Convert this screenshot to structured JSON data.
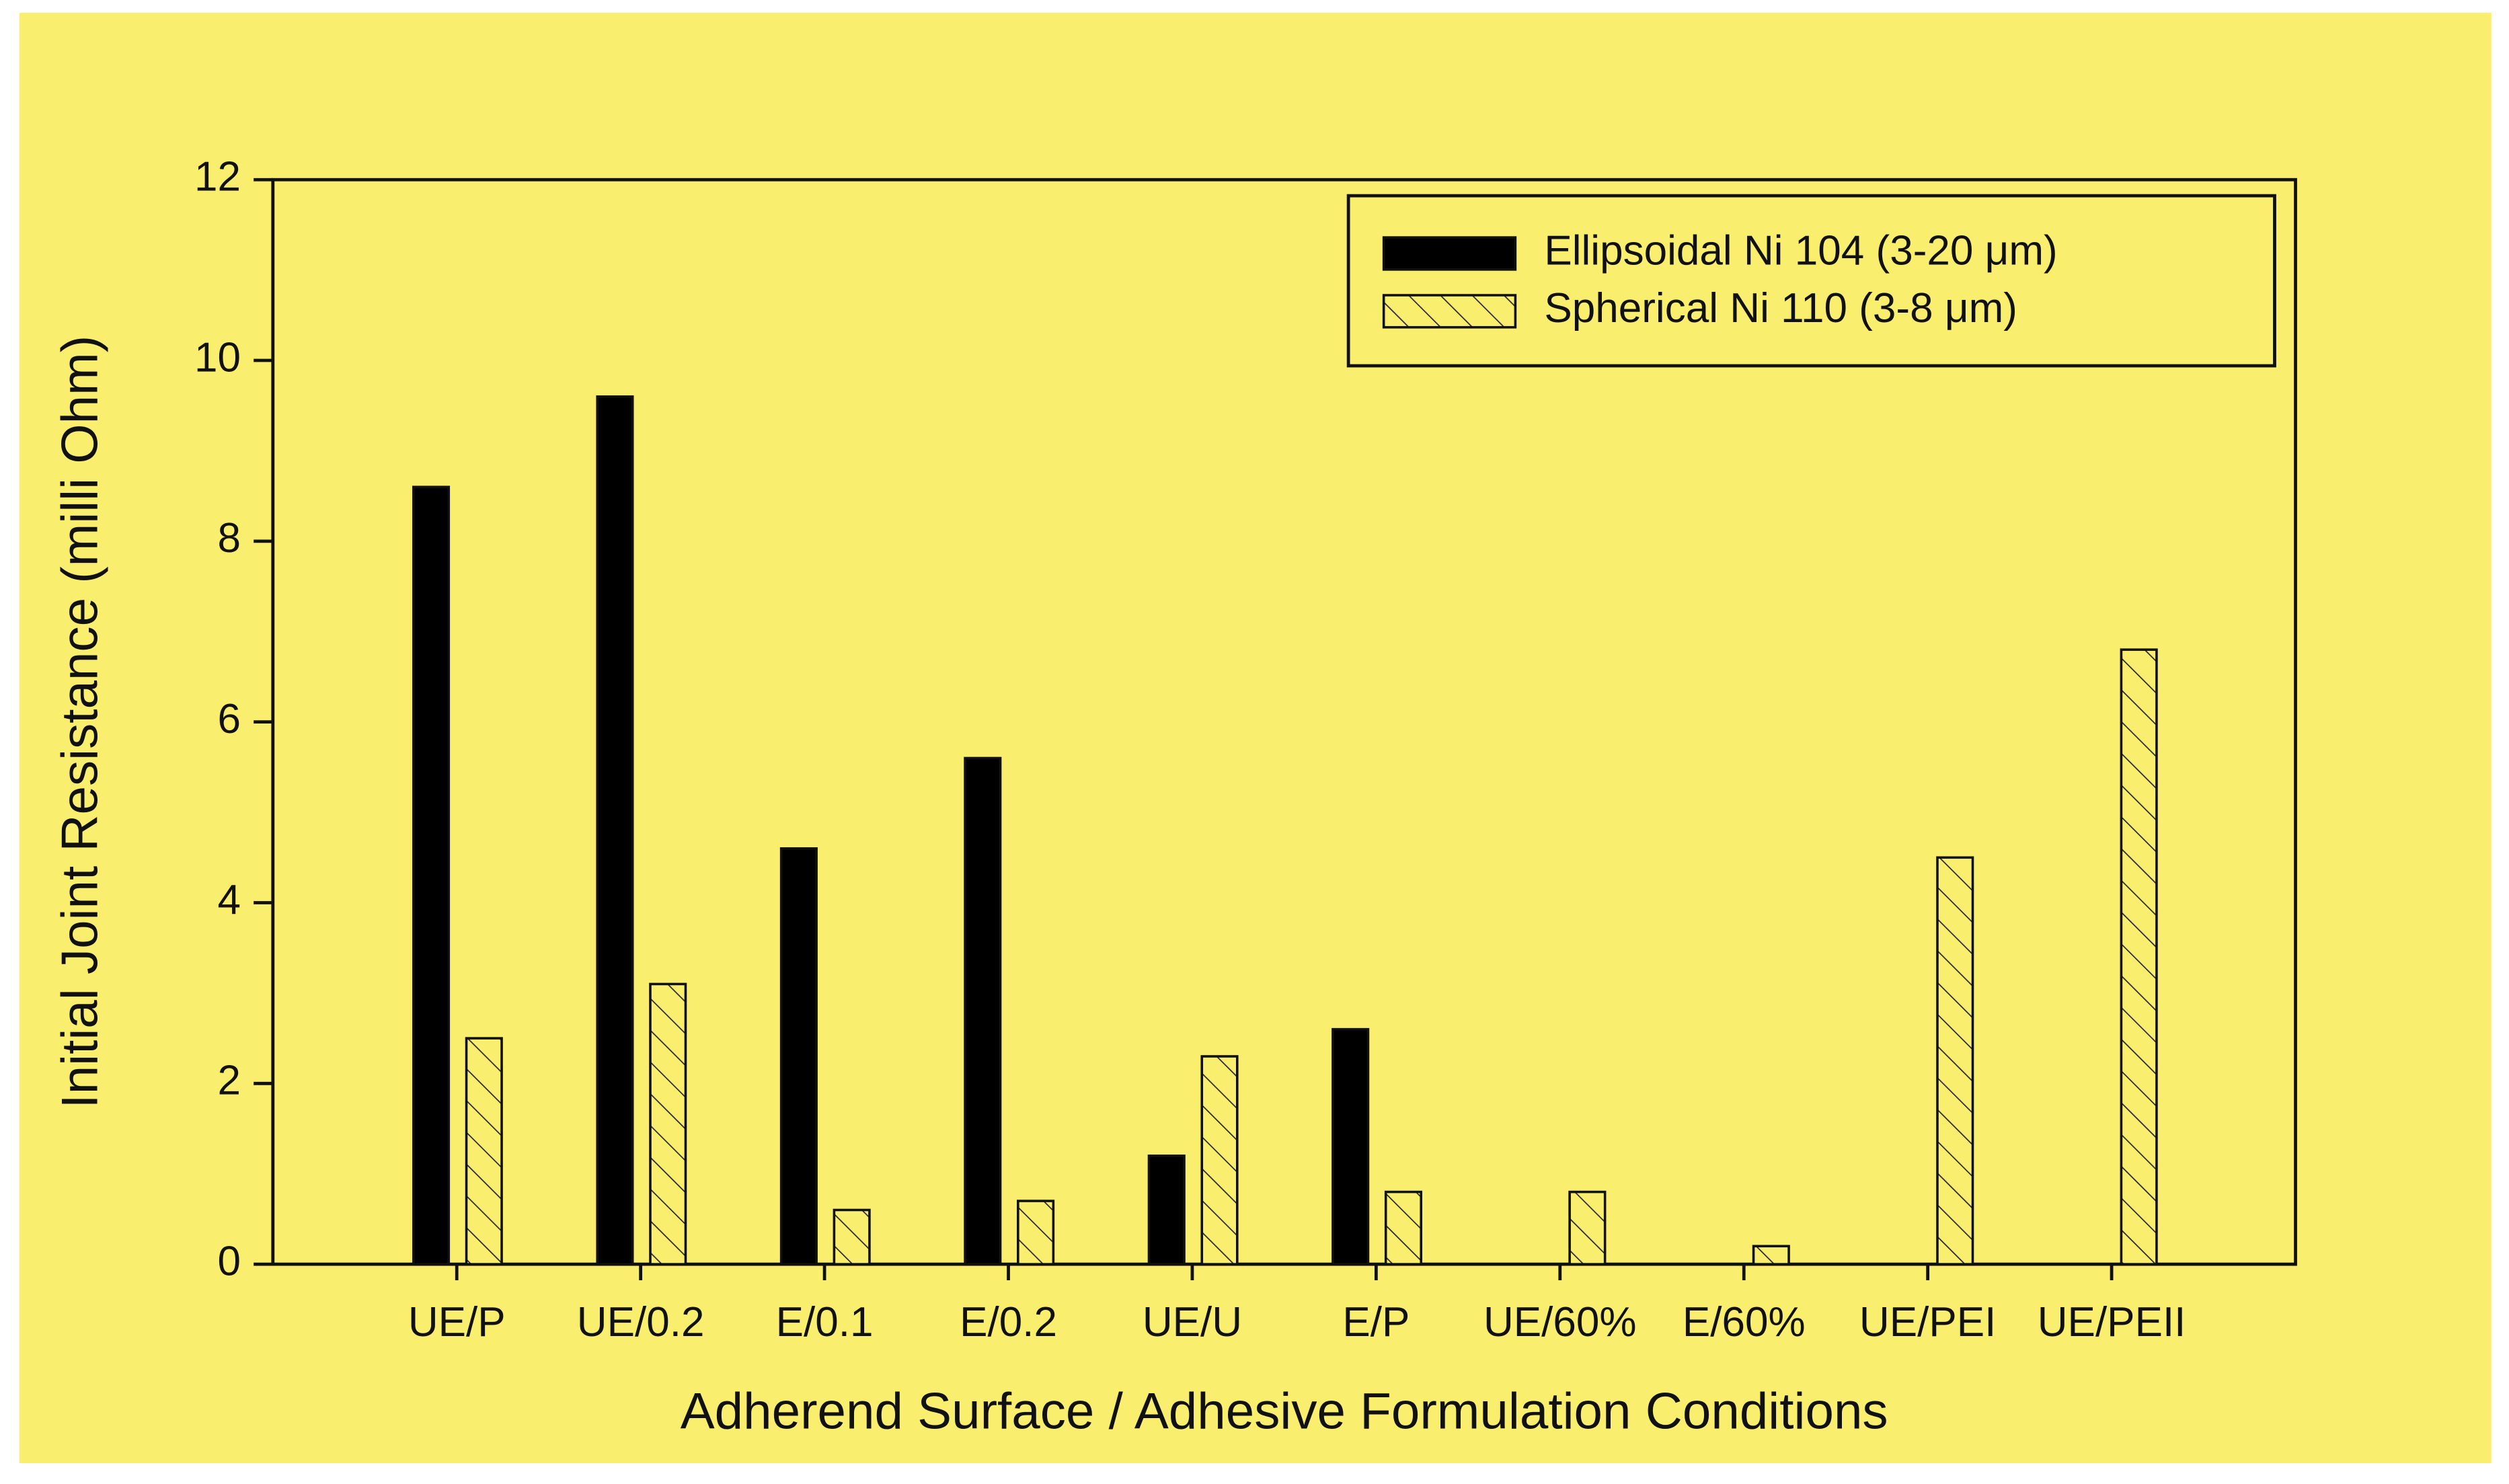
{
  "chart_data": {
    "type": "bar",
    "x_label": "Adherend Surface / Adhesive Formulation Conditions",
    "y_label": "Initial Joint Resistance (milli Ohm)",
    "categories": [
      "UE/P",
      "UE/0.2",
      "E/0.1",
      "E/0.2",
      "UE/U",
      "E/P",
      "UE/60%",
      "E/60%",
      "UE/PEI",
      "UE/PEII"
    ],
    "series": [
      {
        "name": "Ellipsoidal Ni 104 (3-20 μm)",
        "color": "#000000",
        "hatch": false,
        "values": [
          8.6,
          9.6,
          4.6,
          5.6,
          1.2,
          2.6,
          null,
          null,
          null,
          null
        ]
      },
      {
        "name": "Spherical Ni 110 (3-8 μm)",
        "color": "#f9ee6e",
        "hatch": true,
        "values": [
          2.5,
          3.1,
          0.6,
          0.7,
          2.3,
          0.8,
          0.8,
          0.2,
          4.5,
          6.8
        ]
      }
    ],
    "ylim": [
      0,
      12
    ],
    "yticks": [
      0,
      2,
      4,
      6,
      8,
      10,
      12
    ],
    "grid": false,
    "legend": "upper right"
  }
}
